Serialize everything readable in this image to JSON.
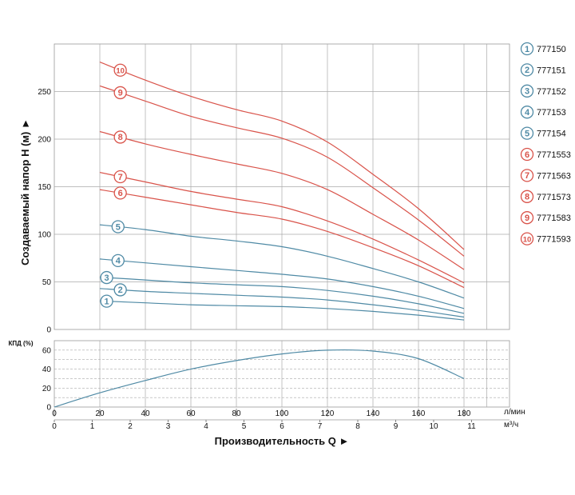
{
  "chart_data": [
    {
      "type": "line",
      "ylabel": "Создаваемый напор H (м) ►",
      "xlim": [
        0,
        200
      ],
      "ylim": [
        0,
        300
      ],
      "yticks": [
        0,
        50,
        100,
        150,
        200,
        250
      ],
      "grid": true,
      "legend_position": "right",
      "colors": {
        "blue": "#4f8aa5",
        "red": "#d9534a"
      },
      "x": [
        20,
        40,
        60,
        80,
        100,
        120,
        140,
        160,
        180
      ],
      "series": [
        {
          "name": "777150",
          "marker": "1",
          "color": "blue",
          "values": [
            30,
            28,
            26,
            25,
            24,
            22,
            19,
            15,
            10
          ]
        },
        {
          "name": "777151",
          "marker": "2",
          "color": "blue",
          "values": [
            43,
            40,
            38,
            36,
            34,
            31,
            26,
            20,
            13
          ]
        },
        {
          "name": "777152",
          "marker": "3",
          "color": "blue",
          "values": [
            55,
            52,
            49,
            47,
            45,
            41,
            35,
            27,
            17
          ]
        },
        {
          "name": "777153",
          "marker": "4",
          "color": "blue",
          "values": [
            74,
            70,
            66,
            62,
            58,
            53,
            45,
            35,
            22
          ]
        },
        {
          "name": "777154",
          "marker": "5",
          "color": "blue",
          "values": [
            110,
            105,
            98,
            93,
            87,
            77,
            64,
            50,
            33
          ]
        },
        {
          "name": "7771553",
          "marker": "6",
          "color": "red",
          "values": [
            147,
            139,
            131,
            123,
            116,
            103,
            86,
            67,
            44
          ]
        },
        {
          "name": "7771563",
          "marker": "7",
          "color": "red",
          "values": [
            165,
            155,
            145,
            137,
            129,
            114,
            95,
            73,
            49
          ]
        },
        {
          "name": "7771573",
          "marker": "8",
          "color": "red",
          "values": [
            208,
            195,
            184,
            174,
            164,
            147,
            121,
            94,
            63
          ]
        },
        {
          "name": "7771583",
          "marker": "9",
          "color": "red",
          "values": [
            256,
            240,
            224,
            212,
            201,
            181,
            149,
            115,
            77
          ]
        },
        {
          "name": "7771593",
          "marker": "10",
          "color": "red",
          "values": [
            281,
            262,
            245,
            231,
            219,
            197,
            163,
            127,
            84
          ]
        }
      ]
    },
    {
      "type": "line",
      "ylabel": "КПД (%)",
      "xlabel": "Производительность Q ►",
      "xlim": [
        0,
        200
      ],
      "ylim": [
        0,
        70
      ],
      "yticks": [
        0,
        20,
        40,
        60
      ],
      "grid": true,
      "x_units_top": "л/мин",
      "x_units_bottom": "м³/ч",
      "xticks_lpm": [
        0,
        20,
        40,
        60,
        80,
        100,
        120,
        140,
        160,
        180
      ],
      "xticks_m3h": [
        0,
        1,
        2,
        3,
        4,
        5,
        6,
        7,
        8,
        9,
        10,
        11
      ],
      "series": [
        {
          "color": "blue",
          "x": [
            0,
            20,
            40,
            60,
            80,
            100,
            120,
            140,
            160,
            180
          ],
          "values": [
            0,
            15,
            28,
            40,
            49,
            56,
            60,
            59,
            51,
            30
          ]
        }
      ]
    }
  ]
}
